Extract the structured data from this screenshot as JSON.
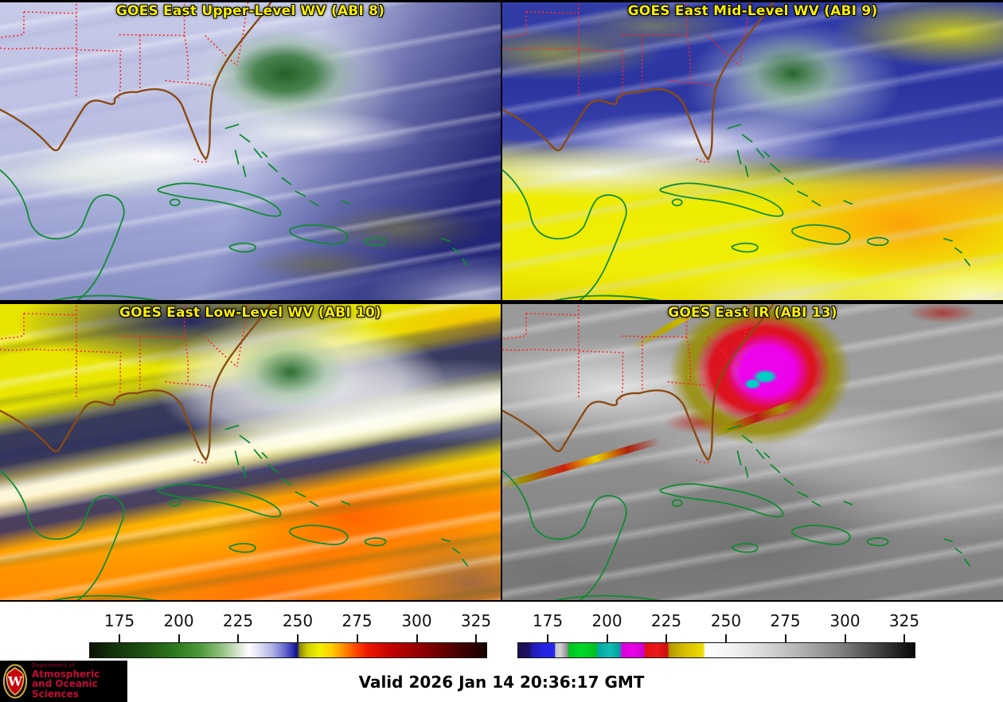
{
  "panels": [
    {
      "title": "GOES East Upper-Level WV (ABI 8)"
    },
    {
      "title": "GOES East Mid-Level WV (ABI 9)"
    },
    {
      "title": "GOES East Low-Level WV (ABI 10)"
    },
    {
      "title": "GOES East IR (ABI 13)"
    }
  ],
  "title_color": "#f8ee00",
  "colorbars": [
    {
      "id": "water-vapor-brightness-temperature",
      "tick_labels": [
        "175",
        "200",
        "225",
        "250",
        "275",
        "300",
        "325"
      ],
      "tick_positions_pct": [
        7.6,
        22.5,
        37.4,
        52.4,
        67.3,
        82.3,
        97.2
      ],
      "gradient_stops": [
        [
          0,
          "#0b1203"
        ],
        [
          6,
          "#14330c"
        ],
        [
          14,
          "#1d5212"
        ],
        [
          22,
          "#2e7c1e"
        ],
        [
          28,
          "#4f9a3c"
        ],
        [
          33,
          "#8fc07c"
        ],
        [
          37,
          "#cfe2c6"
        ],
        [
          40,
          "#ffffff"
        ],
        [
          43,
          "#dcdcf2"
        ],
        [
          46,
          "#b0b2e6"
        ],
        [
          49,
          "#6a6ed0"
        ],
        [
          51,
          "#3434b4"
        ],
        [
          52.2,
          "#10128e"
        ],
        [
          53,
          "#8f8f00"
        ],
        [
          55,
          "#d2d200"
        ],
        [
          58,
          "#f2f200"
        ],
        [
          61,
          "#ffce00"
        ],
        [
          64,
          "#ff8c00"
        ],
        [
          67,
          "#ff4800"
        ],
        [
          70,
          "#ef1800"
        ],
        [
          76,
          "#c20202"
        ],
        [
          84,
          "#8e0000"
        ],
        [
          92,
          "#4e0000"
        ],
        [
          100,
          "#170000"
        ]
      ]
    },
    {
      "id": "infrared-brightness-temperature",
      "tick_labels": [
        "175",
        "200",
        "225",
        "250",
        "275",
        "300",
        "325"
      ],
      "tick_positions_pct": [
        7.6,
        22.5,
        37.4,
        52.4,
        67.3,
        82.3,
        97.2
      ],
      "gradient_stops": [
        [
          0,
          "#1b1050"
        ],
        [
          3,
          "#1c1266"
        ],
        [
          3.2,
          "#2018aa"
        ],
        [
          6,
          "#2424dc"
        ],
        [
          9.2,
          "#2626f2"
        ],
        [
          9.4,
          "#c4c4c4"
        ],
        [
          10.6,
          "#d2d2d2"
        ],
        [
          12.4,
          "#8e8e8e"
        ],
        [
          12.8,
          "#00c222"
        ],
        [
          16,
          "#00da28"
        ],
        [
          19.6,
          "#00c020"
        ],
        [
          20.2,
          "#00a8a2"
        ],
        [
          23,
          "#12bcb4"
        ],
        [
          25.6,
          "#00a0a0"
        ],
        [
          26.2,
          "#d800d8"
        ],
        [
          29,
          "#ea00ea"
        ],
        [
          31.6,
          "#cc00cc"
        ],
        [
          32.2,
          "#e01212"
        ],
        [
          35,
          "#ec1818"
        ],
        [
          37.6,
          "#cc0e0e"
        ],
        [
          38.2,
          "#b29a00"
        ],
        [
          42,
          "#d6be00"
        ],
        [
          46.6,
          "#ecdc00"
        ],
        [
          47.2,
          "#ffffff"
        ],
        [
          54,
          "#f2f2f2"
        ],
        [
          62,
          "#d8d8d8"
        ],
        [
          72,
          "#aeaeae"
        ],
        [
          82,
          "#7c7c7c"
        ],
        [
          92,
          "#3a3a3a"
        ],
        [
          100,
          "#070707"
        ]
      ]
    }
  ],
  "map_overlay": {
    "state_border_color": "#ff2424",
    "coastline_color": "#8a4a12",
    "island_color": "#0f8c32"
  },
  "footer": {
    "valid_text": "Valid 2026 Jan 14 20:36:17 GMT",
    "logo": {
      "monogram": "W",
      "dept_label": "Department of",
      "name_line1": "Atmospheric",
      "name_line2": "and Oceanic Sciences",
      "text_color": "#c20a38",
      "bg_color": "#000000"
    }
  }
}
